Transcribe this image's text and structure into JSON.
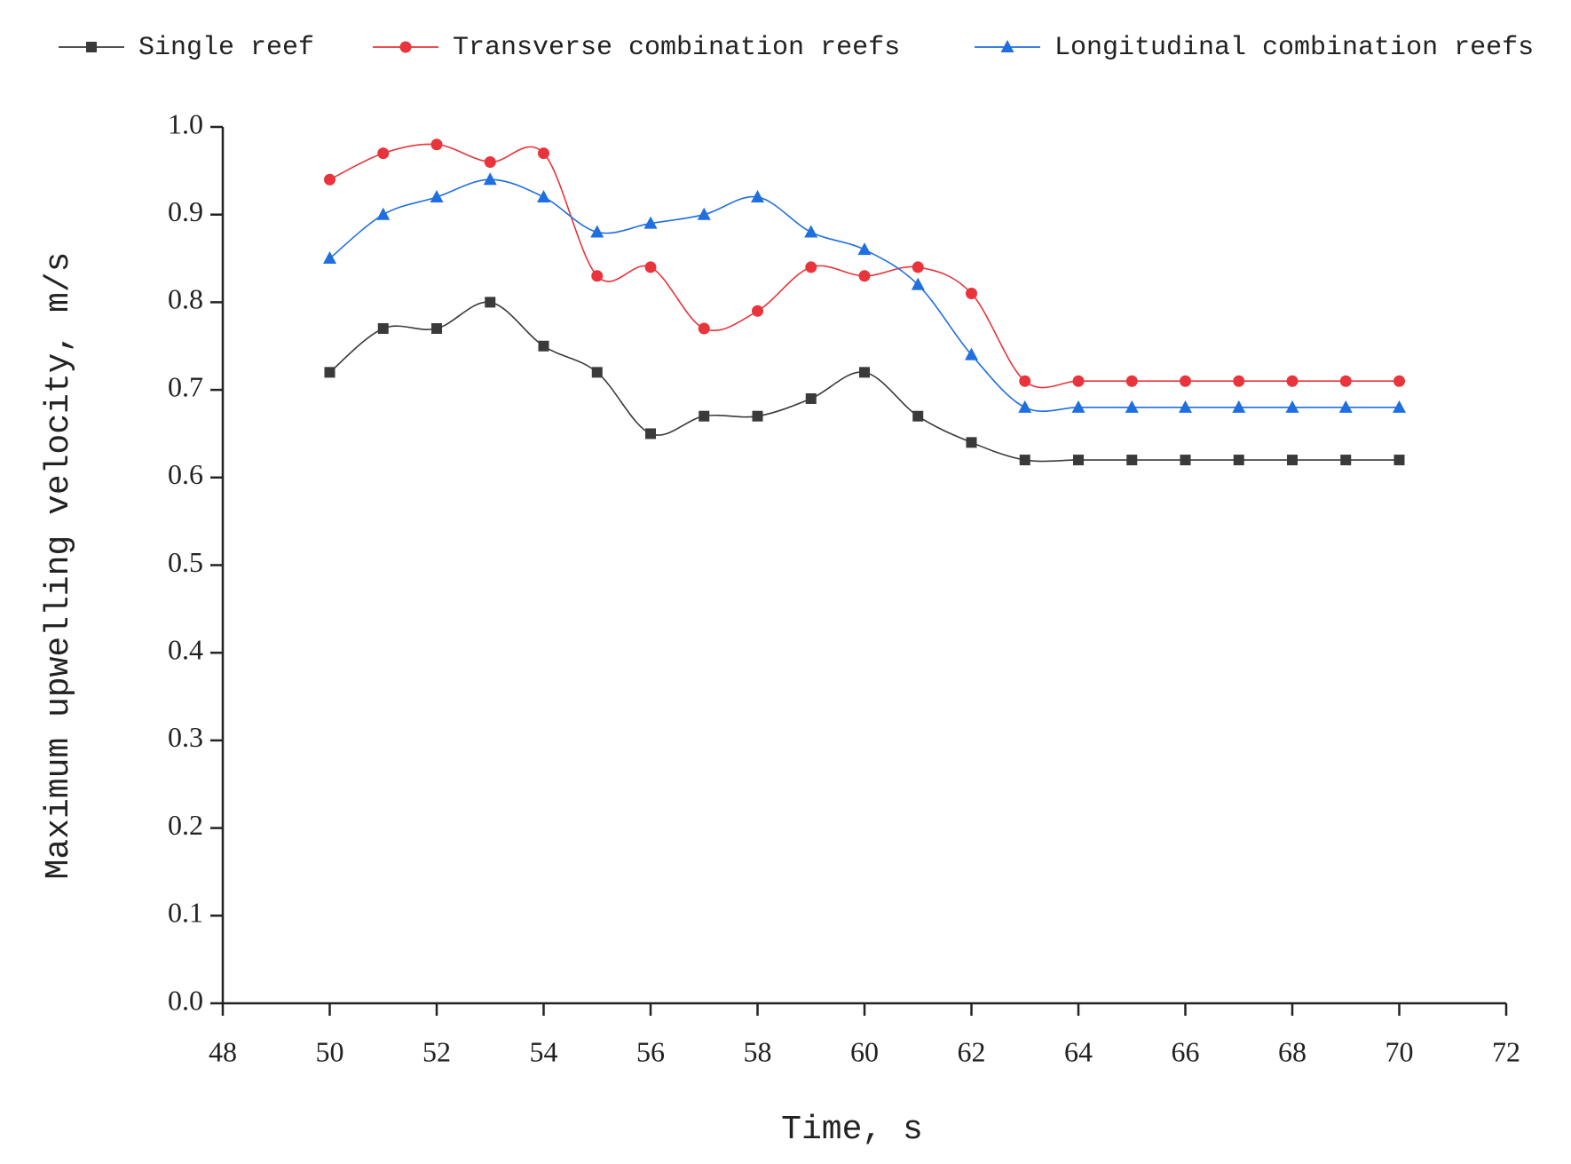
{
  "chart_data": {
    "type": "line",
    "x_label": "Time, s",
    "y_label": "Maximum upwelling velocity, m/s",
    "x": [
      50,
      51,
      52,
      53,
      54,
      55,
      56,
      57,
      58,
      59,
      60,
      61,
      62,
      63,
      64,
      65,
      66,
      67,
      68,
      69,
      70
    ],
    "series": [
      {
        "name": "Single reef",
        "color": "#3a3a3a",
        "marker": "square",
        "values": [
          0.72,
          0.77,
          0.77,
          0.8,
          0.75,
          0.72,
          0.65,
          0.67,
          0.67,
          0.69,
          0.72,
          0.67,
          0.64,
          0.62,
          0.62,
          0.62,
          0.62,
          0.62,
          0.62,
          0.62,
          0.62
        ]
      },
      {
        "name": "Transverse combination reefs",
        "color": "#e8343a",
        "marker": "circle",
        "values": [
          0.94,
          0.97,
          0.98,
          0.96,
          0.97,
          0.83,
          0.84,
          0.77,
          0.79,
          0.84,
          0.83,
          0.84,
          0.81,
          0.71,
          0.71,
          0.71,
          0.71,
          0.71,
          0.71,
          0.71,
          0.71
        ]
      },
      {
        "name": "Longitudinal combination reefs",
        "color": "#1f6fe0",
        "marker": "triangle",
        "values": [
          0.85,
          0.9,
          0.92,
          0.94,
          0.92,
          0.88,
          0.89,
          0.9,
          0.92,
          0.88,
          0.86,
          0.82,
          0.74,
          0.68,
          0.68,
          0.68,
          0.68,
          0.68,
          0.68,
          0.68,
          0.68
        ]
      }
    ],
    "xlim": [
      48,
      72
    ],
    "xticks": [
      48,
      50,
      52,
      54,
      56,
      58,
      60,
      62,
      64,
      66,
      68,
      70,
      72
    ],
    "ylim": [
      0,
      1
    ],
    "yticks": [
      {
        "value": 0,
        "label": "0.0"
      },
      0.1,
      0.2,
      0.3,
      0.4,
      0.5,
      0.6,
      0.7,
      0.8,
      0.9,
      {
        "value": 1,
        "label": "1.0"
      }
    ],
    "smooth": true
  }
}
